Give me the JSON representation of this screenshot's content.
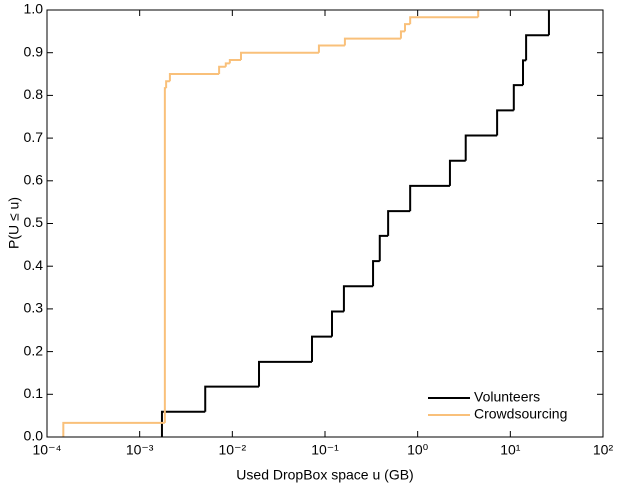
{
  "chart_data": {
    "type": "step",
    "xlabel": "Used DropBox space u (GB)",
    "ylabel": "P(U ≤ u)",
    "xscale": "log",
    "xlim": [
      0.0001,
      100
    ],
    "ylim": [
      0,
      1
    ],
    "xticks": [
      {
        "value": 0.0001,
        "label": "10⁻⁴"
      },
      {
        "value": 0.001,
        "label": "10⁻³"
      },
      {
        "value": 0.01,
        "label": "10⁻²"
      },
      {
        "value": 0.1,
        "label": "10⁻¹"
      },
      {
        "value": 1,
        "label": "10⁰"
      },
      {
        "value": 10,
        "label": "10¹"
      },
      {
        "value": 100,
        "label": "10²"
      }
    ],
    "yticks": [
      {
        "value": 0,
        "label": "0.0"
      },
      0.1,
      0.2,
      0.3,
      0.4,
      0.5,
      0.6,
      0.7,
      0.8,
      0.9,
      {
        "value": 1,
        "label": "1.0"
      }
    ],
    "legend": "lower right",
    "series": [
      {
        "name": "Volunteers",
        "color": "#000000",
        "x": [
          0.00174,
          0.0051,
          0.0194,
          0.0724,
          0.119,
          0.16,
          0.33,
          0.39,
          0.48,
          0.83,
          2.23,
          3.3,
          7.2,
          10.9,
          13.7,
          14.8,
          26.1
        ],
        "values": [
          0.059,
          0.118,
          0.176,
          0.235,
          0.294,
          0.353,
          0.412,
          0.471,
          0.529,
          0.588,
          0.647,
          0.706,
          0.765,
          0.824,
          0.882,
          0.941,
          1.0
        ]
      },
      {
        "name": "Crowdsourcing",
        "color": "#f9c07a",
        "x": [
          0.00015,
          0.00187,
          0.00193,
          0.00212,
          0.0072,
          0.0085,
          0.0094,
          0.0124,
          0.086,
          0.164,
          0.66,
          0.73,
          0.83,
          4.5
        ],
        "values": [
          0.033,
          0.817,
          0.833,
          0.85,
          0.867,
          0.875,
          0.883,
          0.9,
          0.917,
          0.933,
          0.95,
          0.967,
          0.983,
          1.0
        ]
      }
    ]
  }
}
